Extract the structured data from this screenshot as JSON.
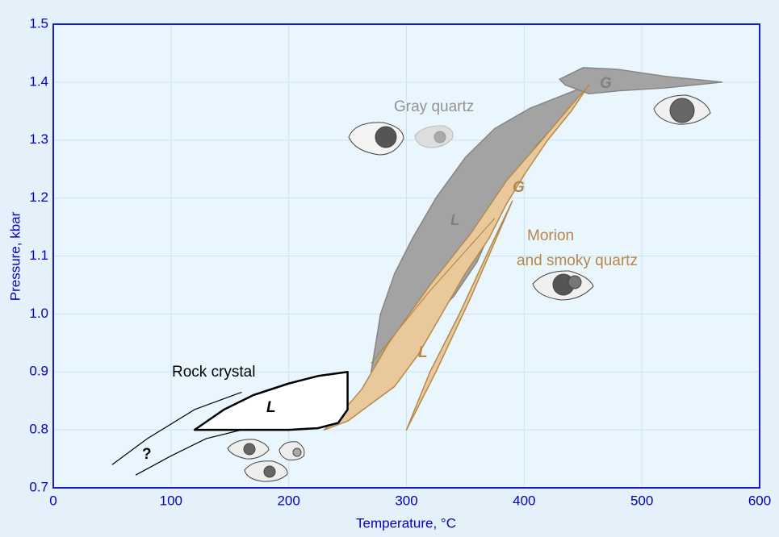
{
  "chart_data": {
    "type": "area",
    "xlabel": "Temperature, °C",
    "ylabel": "Pressure, kbar",
    "xlim": [
      0,
      600
    ],
    "ylim": [
      0.7,
      1.5
    ],
    "xticks": [
      0,
      100,
      200,
      300,
      400,
      500,
      600
    ],
    "yticks": [
      0.7,
      0.8,
      0.9,
      {
        "value": 1,
        "label": "1.0"
      },
      1.1,
      1.2,
      1.3,
      1.4,
      1.5
    ],
    "grid": true,
    "regions": [
      {
        "color": "#a3a3a3",
        "stroke": "#858585",
        "x": [
          270,
          278,
          290,
          305,
          325,
          350,
          375,
          405,
          430,
          455,
          435,
          410,
          390,
          375,
          360,
          340,
          315,
          290,
          270
        ],
        "y": [
          0.9,
          1.0,
          1.07,
          1.13,
          1.2,
          1.27,
          1.32,
          1.355,
          1.375,
          1.395,
          1.345,
          1.29,
          1.22,
          1.16,
          1.09,
          1.03,
          0.98,
          0.94,
          0.9
        ]
      },
      {
        "color": "#a3a3a3",
        "stroke": "#858585",
        "x": [
          430,
          450,
          480,
          520,
          568,
          520,
          480,
          455,
          435
        ],
        "y": [
          1.405,
          1.425,
          1.422,
          1.41,
          1.4,
          1.39,
          1.385,
          1.38,
          1.395
        ]
      },
      {
        "color": "#e9c99b",
        "stroke": "#b48a4a",
        "x": [
          230,
          245,
          262,
          285,
          320,
          355,
          385,
          415,
          440,
          455,
          440,
          420,
          400,
          385,
          370,
          350,
          330,
          310,
          290,
          270,
          250,
          230
        ],
        "y": [
          0.8,
          0.83,
          0.87,
          0.95,
          1.05,
          1.14,
          1.23,
          1.3,
          1.36,
          1.395,
          1.35,
          1.3,
          1.24,
          1.19,
          1.13,
          1.07,
          1.0,
          0.93,
          0.875,
          0.845,
          0.815,
          0.8
        ]
      },
      {
        "color": "#e9c99b",
        "stroke": "#b48a4a",
        "x": [
          300,
          325,
          355,
          390,
          370,
          345,
          320
        ],
        "y": [
          0.8,
          0.9,
          1.03,
          1.195,
          1.11,
          1.0,
          0.9
        ]
      },
      {
        "color": "#ffffff",
        "stroke": "#000000",
        "x": [
          120,
          145,
          170,
          200,
          225,
          250,
          250,
          242,
          225,
          200,
          120
        ],
        "y": [
          0.8,
          0.835,
          0.86,
          0.88,
          0.893,
          0.9,
          0.835,
          0.812,
          0.803,
          0.8,
          0.8
        ]
      }
    ],
    "curves": [
      {
        "color": "#b48a4a",
        "x": [
          270,
          320,
          375
        ],
        "y": [
          0.915,
          1.04,
          1.165
        ]
      },
      {
        "color": "#000000",
        "x": [
          50,
          80,
          120,
          160
        ],
        "y": [
          0.74,
          0.785,
          0.835,
          0.865
        ]
      },
      {
        "color": "#000000",
        "x": [
          70,
          100,
          130,
          160
        ],
        "y": [
          0.722,
          0.755,
          0.785,
          0.8
        ]
      }
    ],
    "annotations": [
      "Gray quartz",
      "Morion",
      "and smoky quartz",
      "Rock crystal",
      "L",
      "L",
      "L",
      "G",
      "G",
      "?"
    ]
  }
}
